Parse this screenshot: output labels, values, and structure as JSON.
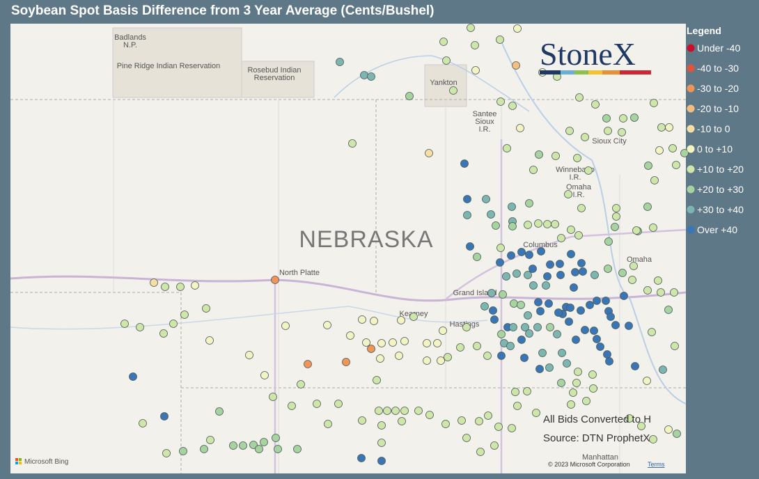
{
  "title": "Soybean Spot Basis Difference from 3 Year Average (Cents/Bushel)",
  "legend": {
    "title": "Legend",
    "items": [
      {
        "label": "Under -40",
        "color": "#c8102e"
      },
      {
        "label": "-40 to -30",
        "color": "#e0553a"
      },
      {
        "label": "-30 to -20",
        "color": "#f0955a"
      },
      {
        "label": "-20 to -10",
        "color": "#f5bd80"
      },
      {
        "label": "-10 to 0",
        "color": "#f7dfa4"
      },
      {
        "label": "0 to +10",
        "color": "#f4f3c4"
      },
      {
        "label": "+10 to +20",
        "color": "#cfe6aa"
      },
      {
        "label": "+20 to +30",
        "color": "#a6d3a0"
      },
      {
        "label": "+30 to +40",
        "color": "#7db5b0"
      },
      {
        "label": "Over +40",
        "color": "#3a76b6"
      }
    ]
  },
  "logo": "StoneX",
  "map_labels": [
    {
      "lines": [
        "Badlands",
        "N.P."
      ]
    },
    {
      "lines": [
        "Pine Ridge Indian Reservation"
      ]
    },
    {
      "lines": [
        "Rosebud Indian",
        "Reservation"
      ]
    },
    {
      "lines": [
        "Yankton"
      ]
    },
    {
      "lines": [
        "Santee",
        "Sioux",
        "I.R."
      ]
    },
    {
      "lines": [
        "Sioux City"
      ]
    },
    {
      "lines": [
        "Winnebago",
        "I.R."
      ]
    },
    {
      "lines": [
        "Omaha",
        "I.R."
      ]
    },
    {
      "lines": [
        "NEBRASKA"
      ]
    },
    {
      "lines": [
        "Columbus"
      ]
    },
    {
      "lines": [
        "Omaha"
      ]
    },
    {
      "lines": [
        "North Platte"
      ]
    },
    {
      "lines": [
        "Grand Island"
      ]
    },
    {
      "lines": [
        "Kearney"
      ]
    },
    {
      "lines": [
        "Hastings"
      ]
    },
    {
      "lines": [
        "Manhattan"
      ]
    }
  ],
  "notes": [
    "All Bids Converted to H",
    "Source: DTN ProphetX"
  ],
  "attribution": "© 2023 Microsoft Corporation",
  "terms": "Terms",
  "bing": "Microsoft Bing"
}
